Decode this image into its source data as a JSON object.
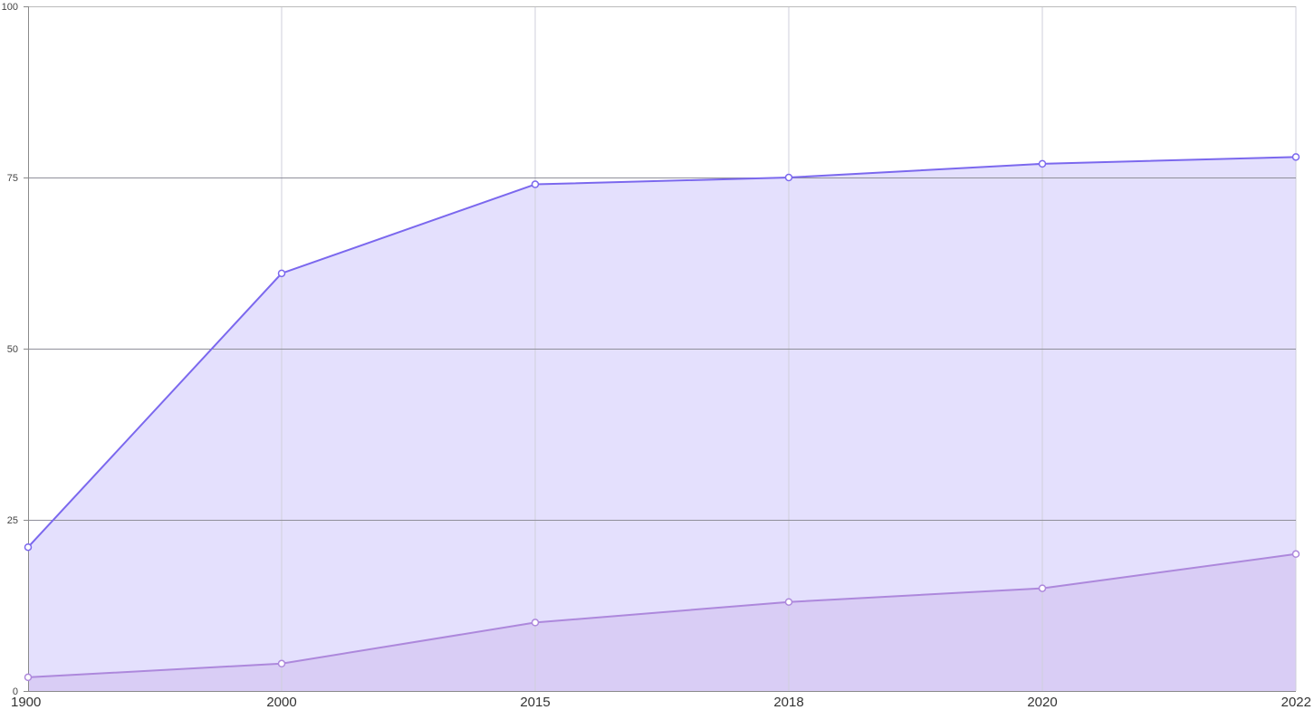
{
  "chart_data": {
    "type": "area",
    "x": [
      "1900",
      "2000",
      "2015",
      "2018",
      "2020",
      "2022"
    ],
    "ylim": [
      0,
      100
    ],
    "yticks": [
      0,
      25,
      50,
      75,
      100
    ],
    "grid": true,
    "legend": "none",
    "series": [
      {
        "values": [
          21,
          61,
          74,
          75,
          77,
          78
        ],
        "line_color": "#7b68ee",
        "fill_color": "#e4e0fd"
      },
      {
        "values": [
          2,
          4,
          10,
          13,
          15,
          20
        ],
        "line_color": "#ad88dc",
        "fill_color": "#d9cdf5"
      }
    ]
  }
}
